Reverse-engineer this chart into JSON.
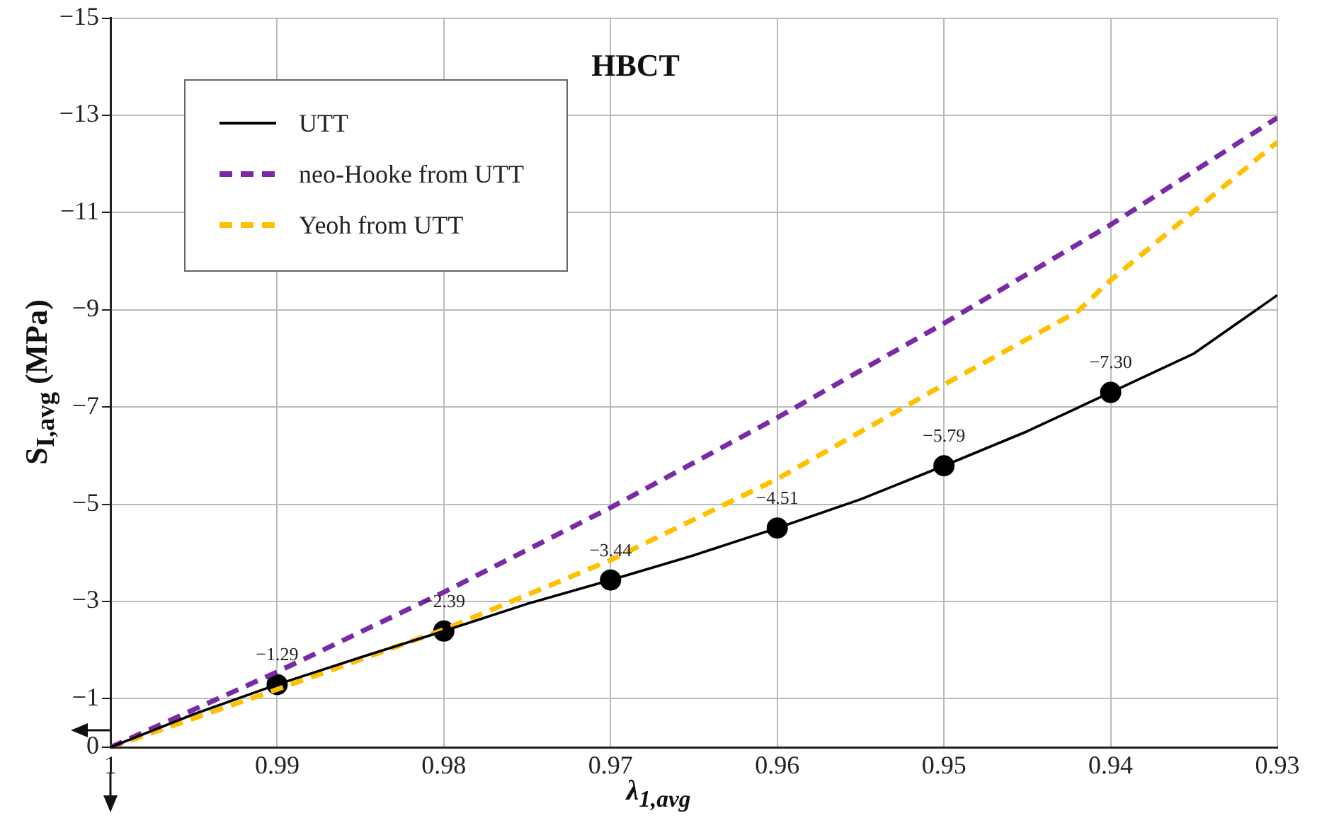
{
  "chart_data": {
    "type": "line",
    "title": "HBCT",
    "xlabel": "λ$_{1,avg}$",
    "ylabel": "S$_{I,avg}$ (MPa)",
    "xlim": [
      1,
      0.93
    ],
    "xticks": [
      1,
      0.99,
      0.98,
      0.97,
      0.96,
      0.95,
      0.94,
      0.93
    ],
    "ylim": [
      0,
      -15
    ],
    "yticks": [
      0,
      {
        "value": -1,
        "label": "−1"
      },
      {
        "value": -3,
        "label": "−3"
      },
      {
        "value": -5,
        "label": "−5"
      },
      {
        "value": -7,
        "label": "−7"
      },
      {
        "value": -9,
        "label": "−9"
      },
      {
        "value": -11,
        "label": "−11"
      },
      {
        "value": -13,
        "label": "−13"
      },
      {
        "value": -15,
        "label": "−15"
      }
    ],
    "grid": true,
    "legend": "top left",
    "series": [
      {
        "name": "UTT",
        "color": "#000000",
        "line_style": "solid",
        "marker": "none",
        "x": [
          1,
          0.995,
          0.99,
          0.985,
          0.98,
          0.975,
          0.97,
          0.965,
          0.96,
          0.955,
          0.95,
          0.945,
          0.94,
          0.935,
          0.93
        ],
        "values": [
          0,
          -0.68,
          -1.29,
          -1.85,
          -2.39,
          -2.95,
          -3.44,
          -3.95,
          -4.51,
          -5.1,
          -5.79,
          -6.5,
          -7.3,
          -8.1,
          -9.3
        ]
      },
      {
        "name": "neo-Hooke from UTT",
        "color": "#7b2aa6",
        "line_style": "dashed",
        "marker": "none",
        "x": [
          1,
          0.99,
          0.98,
          0.97,
          0.96,
          0.95,
          0.94,
          0.93
        ],
        "values": [
          0,
          -1.55,
          -3.19,
          -4.93,
          -6.78,
          -8.72,
          -10.75,
          -12.95
        ]
      },
      {
        "name": "Yeoh from UTT",
        "color": "#ffc000",
        "line_style": "dashed",
        "marker": "none",
        "x": [
          1,
          0.99,
          0.98,
          0.97,
          0.96,
          0.95,
          0.942,
          0.94,
          0.93
        ],
        "values": [
          0,
          -1.19,
          -2.42,
          -3.85,
          -5.52,
          -7.46,
          -8.96,
          -9.61,
          -12.45
        ]
      },
      {
        "type": "scatter",
        "color": "#000000",
        "marker": "circle",
        "x": [
          0.99,
          0.98,
          0.97,
          0.96,
          0.95,
          0.94
        ],
        "values": [
          -1.29,
          -2.39,
          -3.44,
          -4.51,
          -5.79,
          -7.3
        ],
        "value_labels": [
          "−1.29",
          "−2.39",
          "−3.44",
          "−4.51",
          "−5.79",
          "−7.30"
        ]
      }
    ]
  }
}
